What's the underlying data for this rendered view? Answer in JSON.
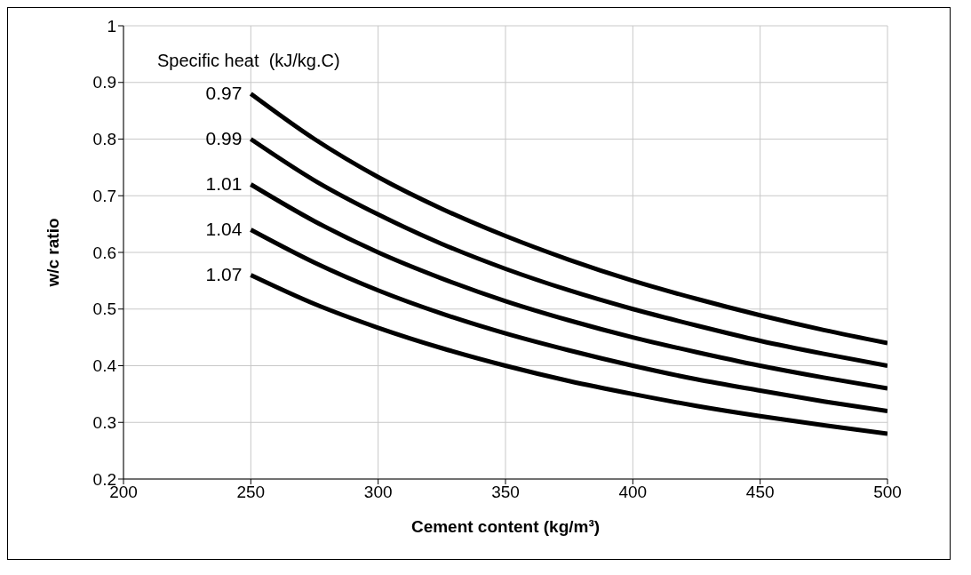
{
  "chart_data": {
    "type": "line",
    "xlabel": "Cement content (kg/m³)",
    "ylabel": "w/c ratio",
    "legend_title": "Specific heat  (kJ/kg.C)",
    "x": [
      250,
      275,
      300,
      325,
      350,
      375,
      400,
      425,
      450,
      475,
      500
    ],
    "series": [
      {
        "name": "0.97",
        "color": "#000000",
        "values": [
          0.88,
          0.8,
          0.733,
          0.677,
          0.629,
          0.587,
          0.55,
          0.518,
          0.489,
          0.463,
          0.44
        ]
      },
      {
        "name": "0.99",
        "color": "#000000",
        "values": [
          0.8,
          0.727,
          0.667,
          0.615,
          0.571,
          0.533,
          0.5,
          0.471,
          0.444,
          0.421,
          0.4
        ]
      },
      {
        "name": "1.01",
        "color": "#000000",
        "values": [
          0.72,
          0.655,
          0.6,
          0.554,
          0.514,
          0.48,
          0.45,
          0.424,
          0.4,
          0.379,
          0.36
        ]
      },
      {
        "name": "1.04",
        "color": "#000000",
        "values": [
          0.64,
          0.582,
          0.533,
          0.492,
          0.457,
          0.427,
          0.4,
          0.376,
          0.356,
          0.337,
          0.32
        ]
      },
      {
        "name": "1.07",
        "color": "#000000",
        "values": [
          0.56,
          0.509,
          0.467,
          0.431,
          0.4,
          0.373,
          0.35,
          0.329,
          0.311,
          0.295,
          0.28
        ]
      }
    ],
    "xlim": [
      200,
      500
    ],
    "xticks": [
      200,
      250,
      300,
      350,
      400,
      450,
      500
    ],
    "ylim": [
      0.2,
      1
    ],
    "yticks": [
      0.2,
      0.3,
      0.4,
      0.5,
      0.6,
      0.7,
      0.8,
      0.9,
      1
    ],
    "grid": true,
    "marker": "none",
    "line_style": "solid"
  }
}
